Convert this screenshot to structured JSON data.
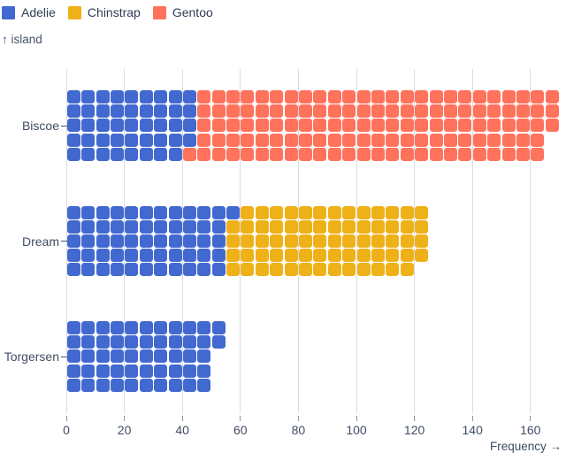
{
  "legend": {
    "items": [
      {
        "label": "Adelie",
        "color": "#4269d0"
      },
      {
        "label": "Chinstrap",
        "color": "#efb118"
      },
      {
        "label": "Gentoo",
        "color": "#ff725c"
      }
    ]
  },
  "axes": {
    "y_label": "↑ island",
    "x_label": "Frequency →"
  },
  "chart_data": {
    "type": "waffle",
    "subtype": "stacked-horizontal-waffle-bar",
    "unit_value": 1,
    "cells_per_column": 5,
    "fill_order": "column-major, left-to-right, top-to-bottom within column",
    "title": "",
    "xlabel": "Frequency",
    "ylabel": "island",
    "xlim": [
      0,
      168
    ],
    "x_ticks": [
      0,
      20,
      40,
      60,
      80,
      100,
      120,
      140,
      160
    ],
    "grid": true,
    "legend_position": "top-left",
    "categories": [
      "Biscoe",
      "Dream",
      "Torgersen"
    ],
    "series": [
      {
        "name": "Adelie",
        "color": "#4269d0",
        "values": [
          44,
          56,
          52
        ]
      },
      {
        "name": "Chinstrap",
        "color": "#efb118",
        "values": [
          0,
          68,
          0
        ]
      },
      {
        "name": "Gentoo",
        "color": "#ff725c",
        "values": [
          124,
          0,
          0
        ]
      }
    ],
    "totals": [
      168,
      124,
      52
    ]
  },
  "colors": {
    "background": "#ffffff",
    "grid_line": "#d9dce1",
    "tick_mark": "#8f96a1",
    "text": "#3d4a60"
  }
}
